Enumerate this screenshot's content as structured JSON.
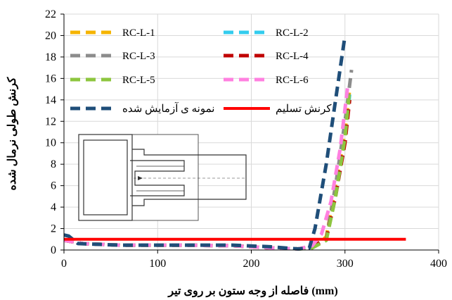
{
  "chart_data": {
    "type": "line",
    "xlabel": "فاصله از وجه ستون بر روی تیر (mm)",
    "ylabel": "کرنش طولی نرمال شده",
    "xlim": [
      0,
      400
    ],
    "ylim": [
      0,
      22
    ],
    "x_ticks": [
      "0",
      "100",
      "200",
      "300",
      "400"
    ],
    "y_ticks": [
      "0",
      "2",
      "4",
      "6",
      "8",
      "10",
      "12",
      "14",
      "16",
      "18",
      "20",
      "22"
    ],
    "grid": true,
    "legend_position": "top",
    "series": [
      {
        "name": "RC-L-1",
        "color": "#F5B400",
        "dash": "dashed",
        "x": [
          0,
          20,
          60,
          120,
          180,
          220,
          250,
          265,
          280,
          290,
          300,
          305
        ],
        "y": [
          0.9,
          0.6,
          0.45,
          0.45,
          0.4,
          0.2,
          0.1,
          0.3,
          1.2,
          6,
          11,
          15
        ]
      },
      {
        "name": "RC-L-2",
        "color": "#33CCEE",
        "dash": "dashed",
        "x": [
          0,
          20,
          60,
          120,
          180,
          220,
          250,
          265,
          280,
          290,
          300,
          305
        ],
        "y": [
          0.9,
          0.6,
          0.45,
          0.45,
          0.4,
          0.2,
          0.1,
          0.3,
          1.0,
          5.5,
          10.5,
          14.5
        ]
      },
      {
        "name": "RC-L-3",
        "color": "#8C8C8C",
        "dash": "dashed",
        "x": [
          0,
          20,
          60,
          120,
          180,
          220,
          250,
          265,
          280,
          290,
          300,
          307
        ],
        "y": [
          0.9,
          0.6,
          0.45,
          0.45,
          0.4,
          0.2,
          0.1,
          0.3,
          1.0,
          6,
          12,
          16.8
        ]
      },
      {
        "name": "RC-L-4",
        "color": "#C00000",
        "dash": "dashed",
        "x": [
          0,
          20,
          60,
          120,
          180,
          220,
          250,
          265,
          280,
          290,
          300,
          305
        ],
        "y": [
          0.9,
          0.6,
          0.45,
          0.45,
          0.4,
          0.2,
          0.1,
          0.3,
          1.0,
          5,
          10,
          14
        ]
      },
      {
        "name": "RC-L-5",
        "color": "#8DC63F",
        "dash": "dashed",
        "x": [
          0,
          20,
          60,
          120,
          180,
          220,
          250,
          265,
          280,
          290,
          300,
          305
        ],
        "y": [
          0.9,
          0.6,
          0.45,
          0.45,
          0.4,
          0.2,
          0.1,
          0.2,
          0.9,
          5,
          10.5,
          15
        ]
      },
      {
        "name": "RC-L-6",
        "color": "#FF80E0",
        "dash": "dashed",
        "x": [
          0,
          20,
          60,
          120,
          180,
          220,
          250,
          265,
          275,
          285,
          295,
          303
        ],
        "y": [
          0.9,
          0.6,
          0.45,
          0.45,
          0.4,
          0.2,
          0.1,
          0.4,
          1.5,
          4.5,
          9.5,
          15.3
        ]
      },
      {
        "name": "نمونه ی آزمایش شده",
        "color": "#1F4E79",
        "dash": "dashed",
        "x": [
          0,
          5,
          15,
          60,
          120,
          180,
          220,
          250,
          262,
          268,
          280,
          290,
          300
        ],
        "y": [
          1.4,
          1.3,
          0.6,
          0.45,
          0.45,
          0.45,
          0.3,
          0.1,
          0.2,
          2,
          8,
          14,
          20
        ]
      },
      {
        "name": "کرنش تسلیم",
        "color": "#FF0000",
        "dash": "solid",
        "x": [
          0,
          365
        ],
        "y": [
          1.0,
          1.0
        ]
      }
    ]
  }
}
